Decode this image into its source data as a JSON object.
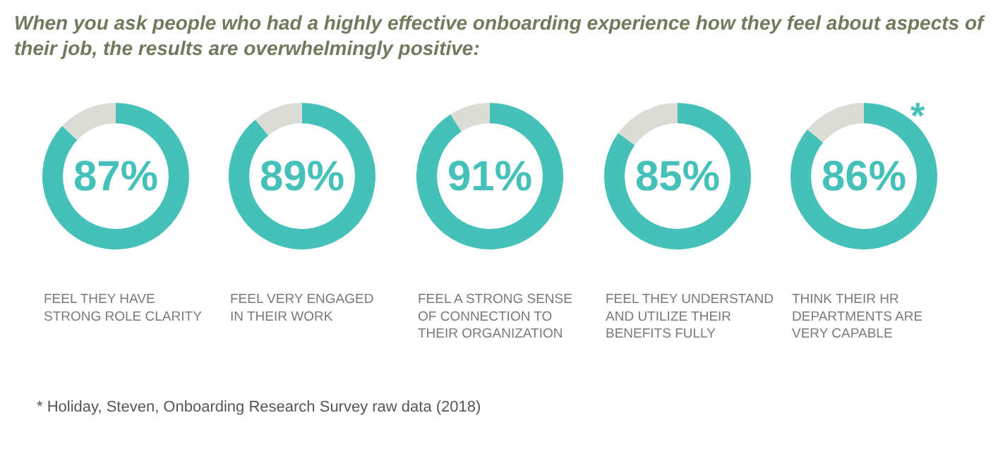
{
  "chart_data": [
    {
      "type": "donut",
      "title": "When you ask people who had a highly effective onboarding experience how they feel about aspects of\ntheir job, the results are overwhelmingly positive:",
      "categories": [
        null,
        null
      ],
      "values": [
        87,
        13
      ],
      "colors": [
        "#45c1b9",
        "#dcdcd6"
      ],
      "value_labels": [
        "87%",
        null
      ],
      "annotations": [
        "FEEL THEY HAVE\nSTRONG ROLE CLARITY",
        "* Holiday, Steven, Onboarding Research Survey raw data (2018)"
      ]
    },
    {
      "type": "donut",
      "categories": [
        null,
        null
      ],
      "values": [
        89,
        11
      ],
      "colors": [
        "#45c1b9",
        "#dcdcd6"
      ],
      "value_labels": [
        "89%",
        null
      ],
      "annotations": [
        "FEEL VERY ENGAGED\nIN THEIR WORK"
      ]
    },
    {
      "type": "donut",
      "categories": [
        null,
        null
      ],
      "values": [
        91,
        9
      ],
      "colors": [
        "#45c1b9",
        "#dcdcd6"
      ],
      "value_labels": [
        "91%",
        null
      ],
      "annotations": [
        "FEEL A STRONG SENSE\nOF CONNECTION TO\nTHEIR ORGANIZATION"
      ]
    },
    {
      "type": "donut",
      "categories": [
        null,
        null
      ],
      "values": [
        85,
        15
      ],
      "colors": [
        "#45c1b9",
        "#dcdcd6"
      ],
      "value_labels": [
        "85%",
        null
      ],
      "annotations": [
        "FEEL THEY UNDERSTAND\nAND UTILIZE THEIR\nBENEFITS FULLY"
      ]
    },
    {
      "type": "donut",
      "categories": [
        null,
        null
      ],
      "values": [
        86,
        14
      ],
      "colors": [
        "#45c1b9",
        "#dcdcd6"
      ],
      "value_labels": [
        "86%",
        null
      ],
      "annotations": [
        "THINK THEIR HR\nDEPARTMENTS ARE\nVERY CAPABLE",
        "*"
      ]
    }
  ]
}
